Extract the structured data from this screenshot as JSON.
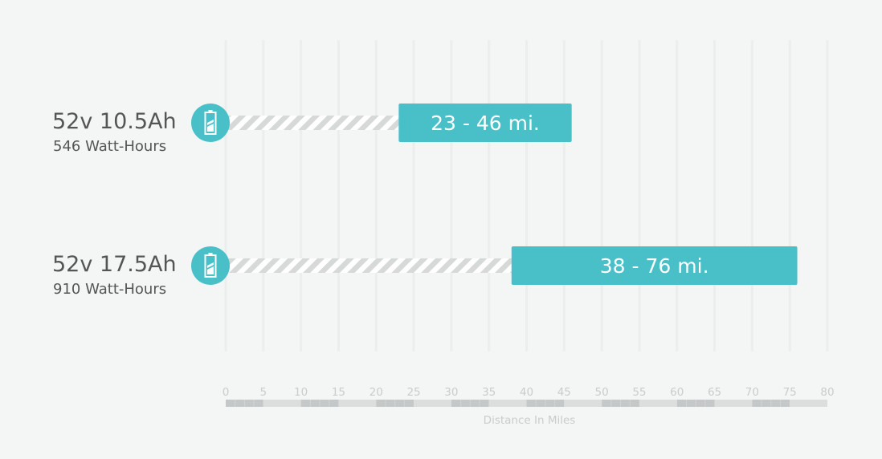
{
  "chart_data": {
    "type": "bar",
    "orientation": "horizontal",
    "xlabel": "Distance In Miles",
    "xlim": [
      0,
      80
    ],
    "x_ticks": [
      "0",
      "5",
      "10",
      "15",
      "20",
      "25",
      "30",
      "35",
      "40",
      "45",
      "50",
      "55",
      "60",
      "65",
      "70",
      "75",
      "80"
    ],
    "icon": "battery-icon",
    "categories": [
      {
        "label": "52v 10.5Ah",
        "sublabel": "546 Watt-Hours",
        "range": [
          23,
          46
        ],
        "range_label": "23 - 46 mi."
      },
      {
        "label": "52v 17.5Ah",
        "sublabel": "910 Watt-Hours",
        "range": [
          38,
          76
        ],
        "range_label": "38 - 76 mi."
      }
    ],
    "colors": {
      "accent": "#49c0c8",
      "stripe": "#d7d9d9",
      "grid": "#eceeee",
      "axis_dark": "#c5c8c8",
      "axis_light": "#dcdede"
    }
  }
}
